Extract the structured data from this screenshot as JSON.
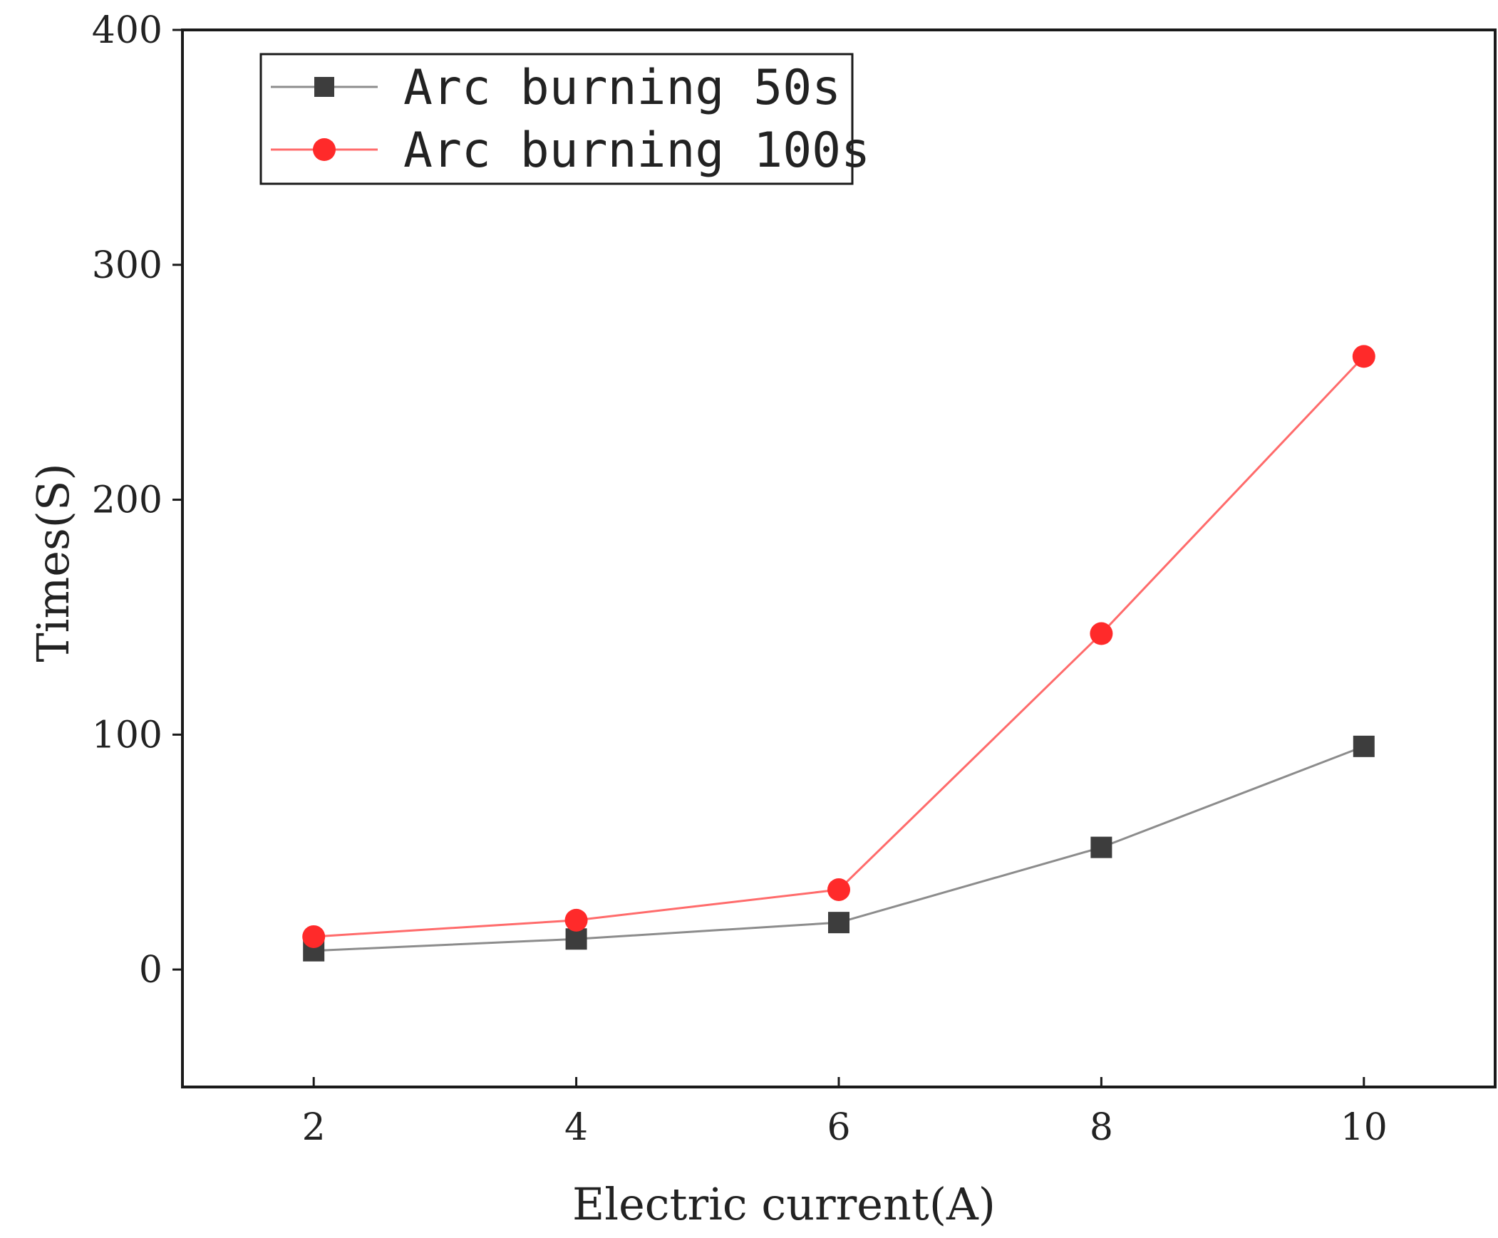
{
  "chart_data": {
    "type": "line",
    "title": "",
    "xlabel": "Electric current(A)",
    "ylabel": "Times(S)",
    "x": [
      2,
      4,
      6,
      8,
      10
    ],
    "xlim": [
      1,
      11
    ],
    "ylim": [
      -50,
      400
    ],
    "xticks": [
      2,
      4,
      6,
      8,
      10
    ],
    "yticks": [
      0,
      100,
      200,
      300,
      400
    ],
    "grid": false,
    "legend_position": "top-left",
    "series": [
      {
        "name": "Arc burning 50s",
        "marker": "square",
        "color": "#3d3d3d",
        "line_color": "#8c8c8c",
        "values": [
          8,
          13,
          20,
          52,
          95
        ]
      },
      {
        "name": "Arc burning 100s",
        "marker": "circle",
        "color": "#ff2a2a",
        "line_color": "#ff6b6b",
        "values": [
          14,
          21,
          34,
          143,
          261
        ]
      }
    ]
  }
}
